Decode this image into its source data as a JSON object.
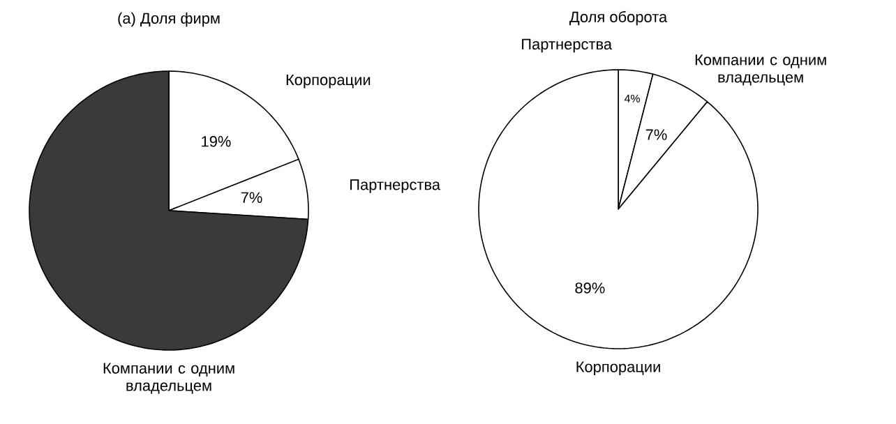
{
  "chart_data": [
    {
      "type": "pie",
      "title": "(а) Доля фирм",
      "categories": [
        "Корпорации",
        "Партнерства",
        "Компании с одним владельцем"
      ],
      "values": [
        19,
        7,
        74
      ],
      "colors": [
        "#ffffff",
        "#ffffff",
        "#3a3a3a"
      ],
      "value_labels": [
        "19%",
        "7%",
        null
      ]
    },
    {
      "type": "pie",
      "title": "Доля оборота",
      "categories": [
        "Партнерства",
        "Компании с одним владельцем",
        "Корпорации"
      ],
      "values": [
        4,
        7,
        89
      ],
      "colors": [
        "#ffffff",
        "#ffffff",
        "#ffffff"
      ],
      "value_labels": [
        "4%",
        "7%",
        "89%"
      ]
    }
  ]
}
